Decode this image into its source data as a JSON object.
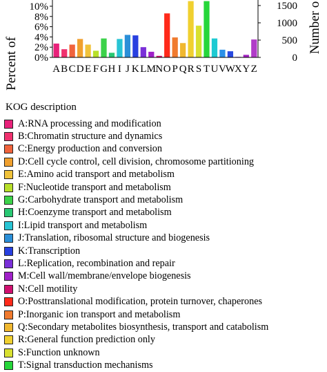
{
  "chart_data": {
    "type": "bar",
    "ylabel_left": "Percent of",
    "ylabel_right": "Number o",
    "yticks_left": [
      "0%",
      "2%",
      "4%",
      "6%",
      "8%",
      "10%"
    ],
    "yticks_right": [
      "0",
      "500",
      "1000",
      "1500"
    ],
    "ylim_left": [
      0,
      11
    ],
    "categories": [
      "A",
      "B",
      "C",
      "D",
      "E",
      "F",
      "G",
      "H",
      "I",
      "J",
      "K",
      "L",
      "M",
      "N",
      "O",
      "P",
      "Q",
      "R",
      "S",
      "T",
      "U",
      "V",
      "W",
      "X",
      "Y",
      "Z"
    ],
    "values": [
      2.7,
      1.6,
      2.5,
      3.6,
      2.5,
      1.3,
      3.7,
      0.9,
      3.6,
      4.4,
      4.3,
      2.0,
      1.1,
      0.3,
      8.6,
      3.9,
      2.8,
      11.0,
      6.2,
      11.0,
      3.7,
      1.5,
      1.2,
      0.1,
      0.5,
      3.5
    ],
    "colors": [
      "#e8217a",
      "#f0316e",
      "#f0633c",
      "#f0a02e",
      "#f0c23a",
      "#b8e02a",
      "#3cd24a",
      "#28c873",
      "#28c4d4",
      "#2b8fd8",
      "#2840e0",
      "#7a2fd8",
      "#a020c8",
      "#d01070",
      "#ff2a1a",
      "#f07a2e",
      "#f0b830",
      "#f0d030",
      "#d8e030",
      "#26d63a",
      "#1ecad2",
      "#2a90e8",
      "#2848e0",
      "#8a38d8",
      "#a020c0",
      "#b03cc8"
    ],
    "grid": false,
    "legend_title": "KOG description",
    "legend": [
      "A:RNA processing and modification",
      "B:Chromatin structure and dynamics",
      "C:Energy production and conversion",
      "D:Cell cycle control, cell division, chromosome partitioning",
      "E:Amino acid transport and metabolism",
      "F:Nucleotide transport and metabolism",
      "G:Carbohydrate transport and metabolism",
      "H:Coenzyme transport and metabolism",
      "I:Lipid transport and metabolism",
      "J:Translation, ribosomal structure and biogenesis",
      "K:Transcription",
      "L:Replication, recombination and repair",
      "M:Cell wall/membrane/envelope biogenesis",
      "N:Cell motility",
      "O:Posttranslational modification, protein turnover, chaperones",
      "P:Inorganic ion transport and metabolism",
      "Q:Secondary metabolites biosynthesis, transport and catabolism",
      "R:General function prediction only",
      "S:Function unknown",
      "T:Signal transduction mechanisms"
    ]
  }
}
